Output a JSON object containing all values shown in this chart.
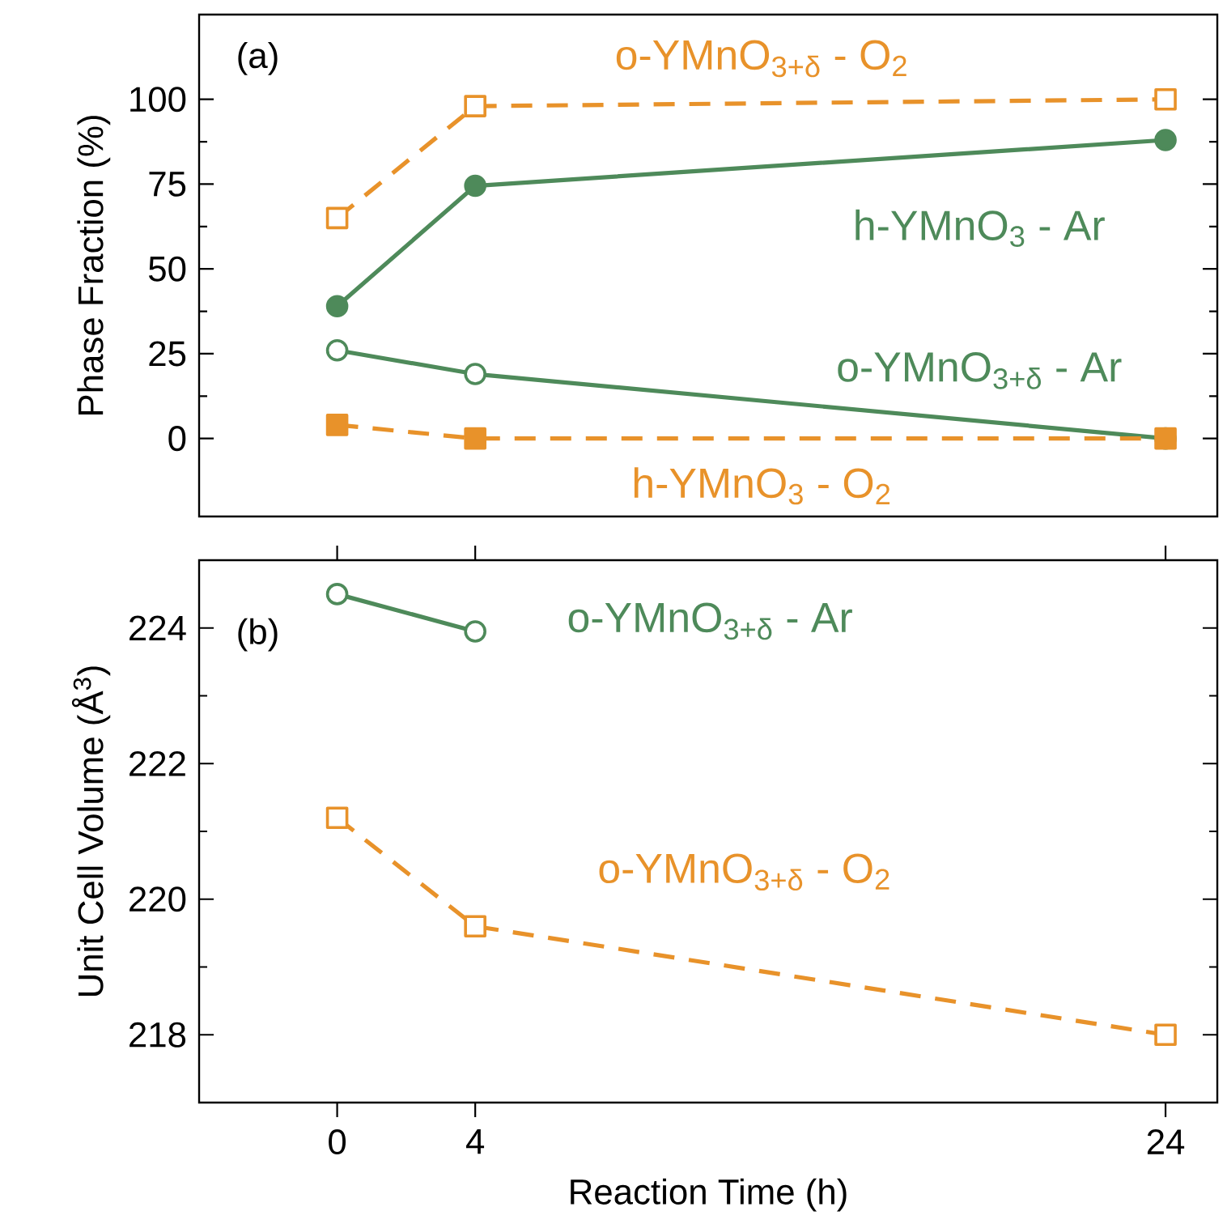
{
  "chart_data": [
    {
      "type": "line",
      "ylabel": "Phase Fraction (%)",
      "annotations": [
        "(a)"
      ],
      "xlim": [
        -4,
        25.5
      ],
      "xticks": [
        0,
        4,
        24
      ],
      "ylim": [
        -23,
        125
      ],
      "yticks": [
        0,
        25,
        50,
        75,
        100
      ],
      "tick_labels": "y",
      "legend": false,
      "grid": false,
      "x": [
        0,
        4,
        24
      ],
      "series": [
        {
          "name": "o-YMnO$_{3+δ}$ - O$_{2}$",
          "color": "#e8922a",
          "values": [
            65,
            98,
            100
          ],
          "line_style": "dashed",
          "marker": "square"
        },
        {
          "name": "h-YMnO$_{3}$ - Ar",
          "color": "#4e8a5a",
          "values": [
            39,
            74.5,
            88
          ],
          "line_style": "solid",
          "marker": "circle"
        },
        {
          "name": "o-YMnO$_{3+δ}$ - Ar",
          "color": "#4e8a5a",
          "values": [
            26,
            19,
            0
          ],
          "line_style": "solid",
          "marker": "circle"
        },
        {
          "name": "h-YMnO$_{3}$ - O$_{2}$",
          "color": "#e8922a",
          "values": [
            4,
            0,
            0
          ],
          "line_style": "dashed",
          "marker": "square"
        }
      ]
    },
    {
      "type": "line",
      "xlabel": "Reaction Time (h)",
      "ylabel": "Unit Cell Volume (Å$^{3}$)",
      "annotations": [
        "(b)"
      ],
      "xlim": [
        -4,
        25.5
      ],
      "xticks": [
        0,
        4,
        24
      ],
      "ylim": [
        217,
        225
      ],
      "yticks": [
        218,
        220,
        222,
        224
      ],
      "legend": false,
      "grid": false,
      "x": [
        0,
        4,
        24
      ],
      "series": [
        {
          "name": "o-YMnO$_{3+δ}$ - Ar",
          "color": "#4e8a5a",
          "values": [
            224.5,
            223.95,
            null
          ],
          "line_style": "solid",
          "marker": "circle"
        },
        {
          "name": "o-YMnO$_{3+δ}$ - O$_{2}$",
          "color": "#e8922a",
          "values": [
            221.2,
            219.6,
            218.0
          ],
          "line_style": "dashed",
          "marker": "square"
        }
      ]
    }
  ]
}
